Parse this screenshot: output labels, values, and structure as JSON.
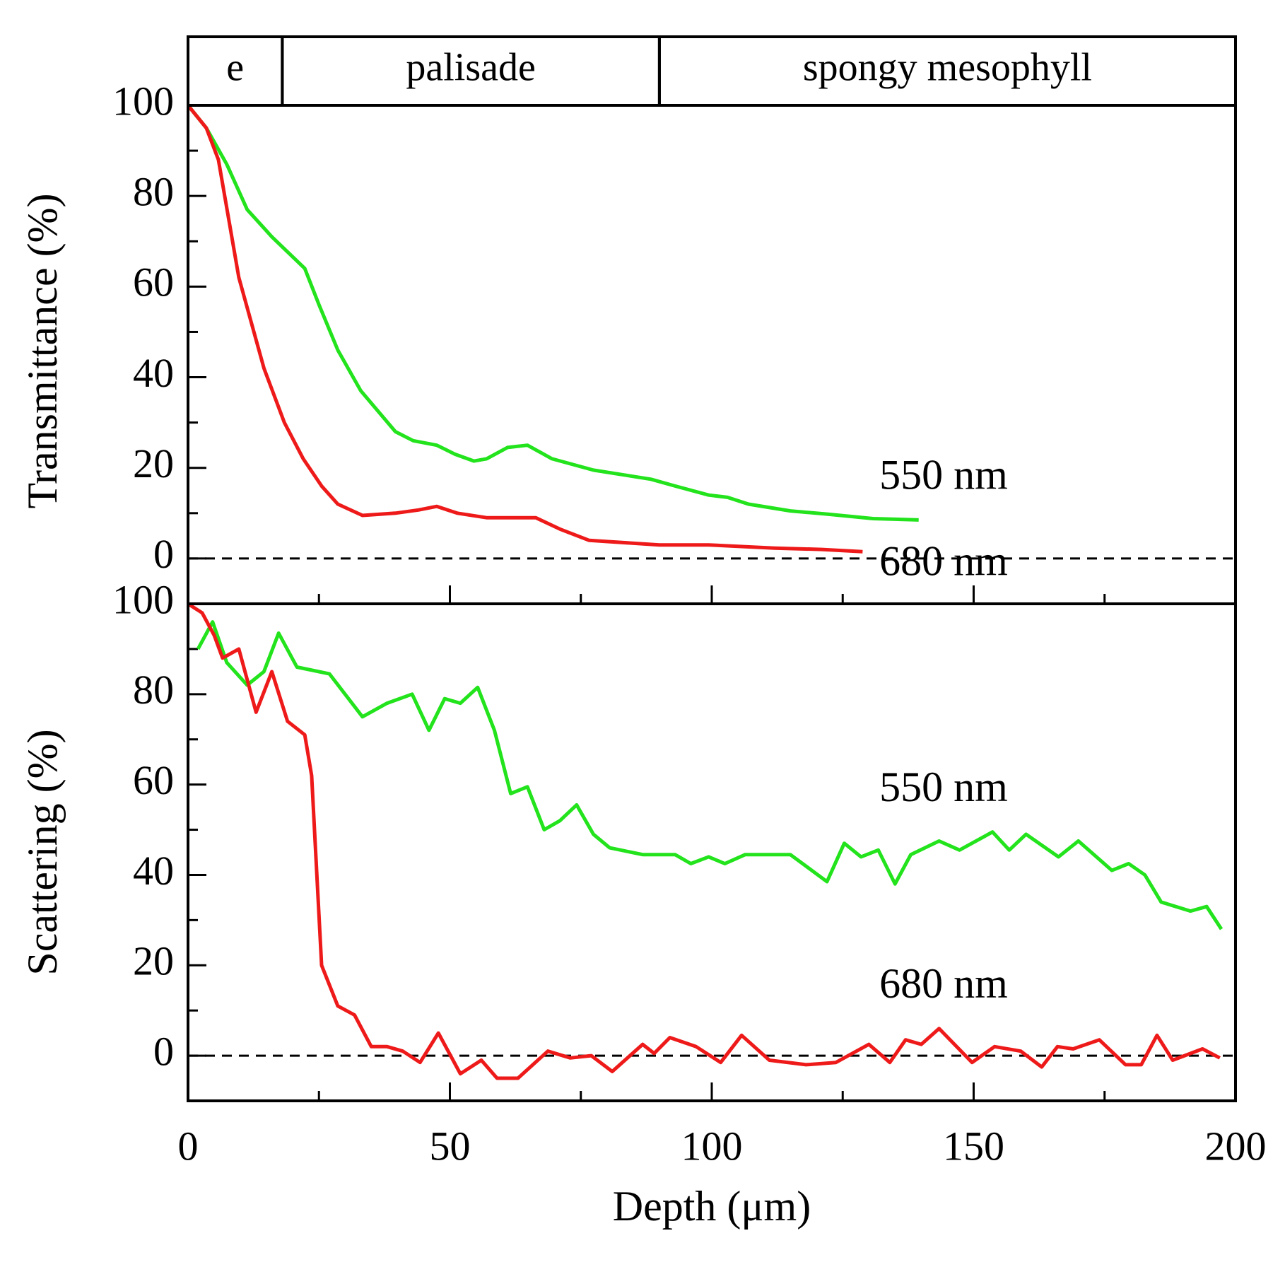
{
  "chart_data": [
    {
      "type": "line",
      "ylabel": "Transmittance (%)",
      "regions": [
        {
          "label": "e",
          "start": 0,
          "end": 18
        },
        {
          "label": "palisade",
          "start": 18,
          "end": 90
        },
        {
          "label": "spongy mesophyll",
          "start": 90,
          "end": 200
        }
      ],
      "xlim": [
        0,
        200
      ],
      "xticks": [
        0,
        50,
        100,
        150,
        200
      ],
      "xticks_minor": [
        25,
        75,
        125,
        175
      ],
      "ylim": [
        -10,
        100
      ],
      "yticks": [
        0,
        20,
        40,
        60,
        80,
        100
      ],
      "yticks_minor": [
        10,
        30,
        50,
        70,
        90
      ],
      "zero_line": true,
      "annotations": [
        "550 nm",
        "680 nm"
      ],
      "series": [
        {
          "name": "550 nm",
          "color": "#22e31c",
          "x": [
            0,
            3.5,
            7.4,
            11.3,
            16,
            22.3,
            25,
            28.6,
            33,
            39.6,
            43,
            47.5,
            51,
            54.6,
            57,
            61,
            64.8,
            69.5,
            77.4,
            88.4,
            93,
            99.4,
            103,
            107,
            115,
            122,
            130.8,
            139.5
          ],
          "values": [
            100,
            95,
            87,
            77,
            71,
            64,
            56,
            46,
            37,
            28,
            26,
            25,
            23,
            21.5,
            22,
            24.5,
            25,
            22,
            19.5,
            17.5,
            16,
            14,
            13.5,
            12,
            10.5,
            9.8,
            8.8,
            8.5
          ]
        },
        {
          "name": "680 nm",
          "color": "#ee1a1a",
          "x": [
            0,
            3.5,
            5.8,
            9.7,
            14.5,
            18.4,
            22,
            25.5,
            28.6,
            33.3,
            39.6,
            44,
            47.5,
            51.4,
            57,
            66.4,
            71,
            76.6,
            90,
            99.4,
            112,
            121,
            128.8
          ],
          "values": [
            100,
            95,
            88,
            62,
            42,
            30,
            22,
            16,
            12,
            9.5,
            10,
            10.7,
            11.5,
            10,
            9,
            9,
            6.5,
            4,
            3,
            3,
            2.3,
            2,
            1.5
          ]
        }
      ]
    },
    {
      "type": "line",
      "ylabel": "Scattering (%)",
      "xlabel": "Depth (μm)",
      "xlim": [
        0,
        200
      ],
      "xticks": [
        0,
        50,
        100,
        150,
        200
      ],
      "xticks_minor": [
        25,
        75,
        125,
        175
      ],
      "ylim": [
        -10,
        100
      ],
      "yticks": [
        0,
        20,
        40,
        60,
        80,
        100
      ],
      "yticks_minor": [
        10,
        30,
        50,
        70,
        90
      ],
      "zero_line": true,
      "annotations": [
        "550 nm",
        "680 nm"
      ],
      "series": [
        {
          "name": "550 nm",
          "color": "#22e31c",
          "x": [
            1.9,
            4.7,
            7.4,
            11.3,
            14.5,
            17.3,
            20.8,
            27,
            33.3,
            38,
            42.8,
            46,
            49,
            52,
            55.3,
            58.5,
            61.6,
            64.8,
            68,
            71,
            74.2,
            77.4,
            80.5,
            86.8,
            93,
            96,
            99.4,
            102.5,
            106.4,
            115,
            122,
            125.3,
            128.5,
            131.8,
            135,
            138,
            143.4,
            147.3,
            153.6,
            156.8,
            160,
            166.2,
            170,
            176.4,
            179.6,
            182.7,
            185.8,
            191.4,
            194.5,
            197.3
          ],
          "values": [
            90,
            96,
            87,
            82,
            85,
            93.5,
            86,
            84.5,
            75,
            78,
            80,
            72,
            79,
            78,
            81.5,
            72,
            58,
            59.5,
            50,
            52,
            55.5,
            49,
            46,
            44.5,
            44.5,
            42.5,
            44,
            42.5,
            44.5,
            44.5,
            38.5,
            47,
            44,
            45.5,
            38,
            44.5,
            47.5,
            45.5,
            49.5,
            45.5,
            49,
            44,
            47.5,
            41,
            42.5,
            40,
            34,
            32,
            33,
            28
          ]
        },
        {
          "name": "680 nm",
          "color": "#ee1a1a",
          "x": [
            0,
            2.7,
            5,
            6.6,
            9.7,
            13,
            16,
            19,
            22.3,
            23.6,
            25.5,
            28.6,
            31.8,
            35,
            38,
            41,
            44.3,
            47.8,
            52,
            56,
            59,
            63,
            68.7,
            73,
            77,
            81,
            86.8,
            89,
            92,
            97,
            101.7,
            105.7,
            111,
            118,
            123.7,
            130,
            134,
            137,
            140,
            143.4,
            149.7,
            154,
            159,
            163,
            166,
            169,
            174,
            179,
            182,
            185,
            188,
            193.7,
            197
          ],
          "values": [
            100,
            98,
            93,
            88,
            90,
            76,
            85,
            74,
            71,
            62,
            20,
            11,
            9,
            2,
            2,
            1,
            -1.5,
            5,
            -4,
            -1,
            -5,
            -5,
            1,
            -0.5,
            0,
            -3.5,
            2.5,
            0.5,
            4,
            2,
            -1.5,
            4.5,
            -1,
            -2,
            -1.5,
            2.5,
            -1.5,
            3.5,
            2.5,
            6,
            -1.5,
            2,
            1,
            -2.5,
            2,
            1.5,
            3.5,
            -2,
            -2,
            4.5,
            -1,
            1.5,
            -0.5
          ]
        }
      ]
    }
  ]
}
